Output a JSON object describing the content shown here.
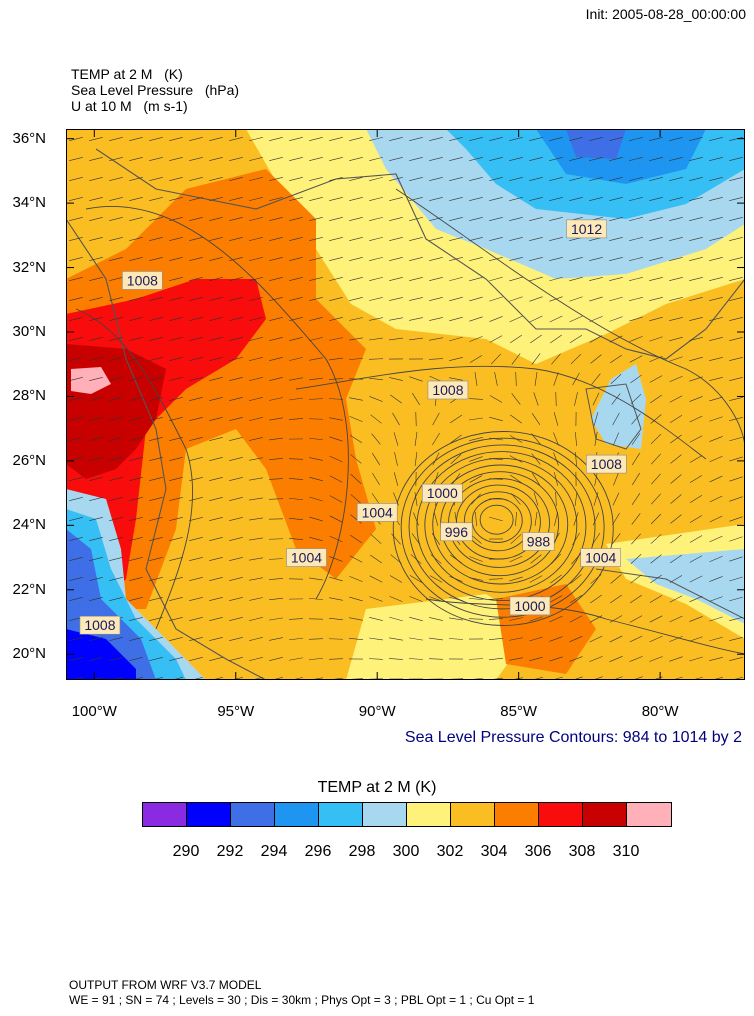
{
  "header": {
    "init": "Init: 2005-08-28_00:00:00",
    "fields": [
      {
        "name": "TEMP at 2 M",
        "unit": "(K)"
      },
      {
        "name": "Sea Level Pressure",
        "unit": "(hPa)"
      },
      {
        "name": "U at 10 M",
        "unit": "(m s-1)"
      }
    ]
  },
  "map": {
    "lat_range": [
      19.2,
      36.3
    ],
    "lon_range": [
      -101,
      -77
    ],
    "lat_ticks": [
      {
        "value": 36,
        "label": "36°N"
      },
      {
        "value": 34,
        "label": "34°N"
      },
      {
        "value": 32,
        "label": "32°N"
      },
      {
        "value": 30,
        "label": "30°N"
      },
      {
        "value": 28,
        "label": "28°N"
      },
      {
        "value": 26,
        "label": "26°N"
      },
      {
        "value": 24,
        "label": "24°N"
      },
      {
        "value": 22,
        "label": "22°N"
      },
      {
        "value": 20,
        "label": "20°N"
      }
    ],
    "lon_ticks": [
      {
        "value": -100,
        "label": "100°W"
      },
      {
        "value": -95,
        "label": "95°W"
      },
      {
        "value": -90,
        "label": "90°W"
      },
      {
        "value": -85,
        "label": "85°W"
      },
      {
        "value": -80,
        "label": "80°W"
      }
    ],
    "contour_labels": [
      {
        "text": "1008",
        "lon": -98.3,
        "lat": 31.6
      },
      {
        "text": "1012",
        "lon": -82.6,
        "lat": 33.2
      },
      {
        "text": "1008",
        "lon": -87.5,
        "lat": 28.2
      },
      {
        "text": "1008",
        "lon": -81.9,
        "lat": 25.9
      },
      {
        "text": "1000",
        "lon": -87.7,
        "lat": 25.0
      },
      {
        "text": "1004",
        "lon": -90.0,
        "lat": 24.4
      },
      {
        "text": "996",
        "lon": -87.2,
        "lat": 23.8
      },
      {
        "text": "988",
        "lon": -84.3,
        "lat": 23.5
      },
      {
        "text": "1004",
        "lon": -92.5,
        "lat": 23.0
      },
      {
        "text": "1004",
        "lon": -82.1,
        "lat": 23.0
      },
      {
        "text": "1000",
        "lon": -84.6,
        "lat": 21.5
      },
      {
        "text": "1008",
        "lon": -99.8,
        "lat": 20.9
      }
    ],
    "contour_note": "Sea Level Pressure Contours: 984 to 1014 by 2"
  },
  "colorbar": {
    "title": "TEMP at 2 M  (K)",
    "colors": [
      "#8a2be2",
      "#0000ff",
      "#3e6fe6",
      "#1e95f0",
      "#35bff5",
      "#a8d8f0",
      "#fff27a",
      "#fbbe22",
      "#fb7e00",
      "#f80c0c",
      "#c80000",
      "#ffb0b8"
    ],
    "labels": [
      "290",
      "292",
      "294",
      "296",
      "298",
      "300",
      "302",
      "304",
      "306",
      "308",
      "310"
    ]
  },
  "footer": {
    "line1": "OUTPUT FROM WRF V3.7 MODEL",
    "line2": "WE = 91 ; SN = 74 ; Levels = 30 ; Dis = 30km ; Phys Opt = 3 ; PBL Opt = 1 ; Cu Opt = 1"
  }
}
